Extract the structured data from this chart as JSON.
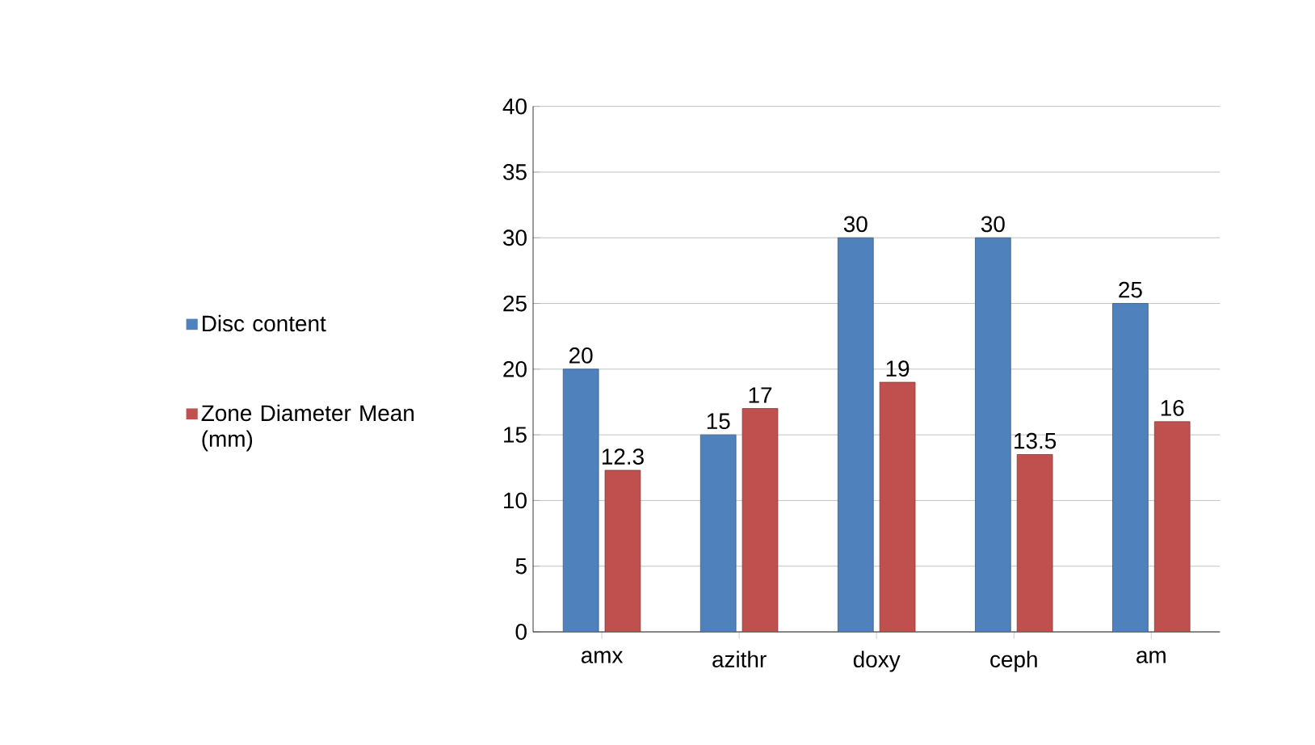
{
  "chart_data": {
    "type": "bar",
    "categories": [
      "amx",
      "azithr",
      "doxy",
      "ceph",
      "am"
    ],
    "series": [
      {
        "name": "Disc content",
        "color": "#4f81bd",
        "values": [
          20,
          15,
          30,
          30,
          25
        ]
      },
      {
        "name": "Zone Diameter Mean (mm)",
        "color": "#c0504d",
        "values": [
          12.3,
          17,
          19,
          13.5,
          16
        ]
      }
    ],
    "ylim": [
      0,
      40
    ],
    "yticks": [
      0,
      5,
      10,
      15,
      20,
      25,
      30,
      35,
      40
    ],
    "grid": "y",
    "legend": "left",
    "data_labels": true
  }
}
